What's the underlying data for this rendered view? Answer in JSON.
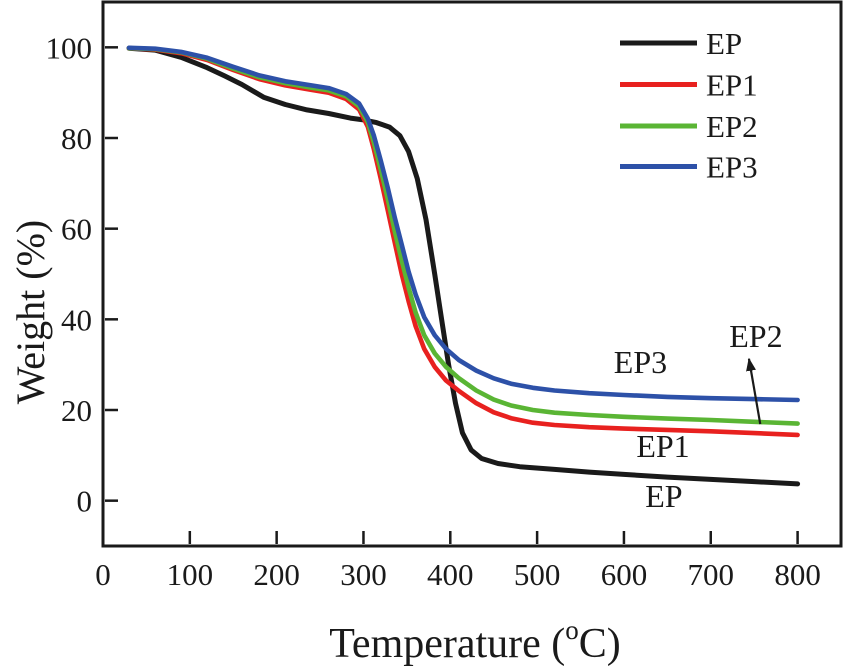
{
  "figure": {
    "background": "#ffffff",
    "frame_color": "#1a1a1a"
  },
  "chart_data": {
    "type": "line",
    "title": "",
    "xlabel": {
      "pre": "Temperature (",
      "sup": "o",
      "post": "C)"
    },
    "ylabel": "Weight (%)",
    "x_ticks": [
      0,
      100,
      200,
      300,
      400,
      500,
      600,
      700,
      800
    ],
    "y_ticks": [
      0,
      20,
      40,
      60,
      80,
      100
    ],
    "xlim": [
      0,
      850
    ],
    "ylim": [
      -10,
      110
    ],
    "grid": false,
    "legend_position": "top-right",
    "series": [
      {
        "name": "EP",
        "color": "#1a1a1a",
        "points": [
          [
            30,
            99.8
          ],
          [
            60,
            99.4
          ],
          [
            90,
            97.8
          ],
          [
            120,
            95.5
          ],
          [
            140,
            93.7
          ],
          [
            160,
            91.8
          ],
          [
            185,
            89.0
          ],
          [
            210,
            87.4
          ],
          [
            235,
            86.2
          ],
          [
            260,
            85.4
          ],
          [
            285,
            84.4
          ],
          [
            300,
            84.0
          ],
          [
            315,
            83.4
          ],
          [
            330,
            82.4
          ],
          [
            342,
            80.5
          ],
          [
            352,
            77.0
          ],
          [
            362,
            71.0
          ],
          [
            372,
            62.0
          ],
          [
            382,
            50.0
          ],
          [
            390,
            40.0
          ],
          [
            398,
            30.0
          ],
          [
            406,
            21.5
          ],
          [
            414,
            15.0
          ],
          [
            424,
            11.2
          ],
          [
            436,
            9.3
          ],
          [
            455,
            8.2
          ],
          [
            480,
            7.5
          ],
          [
            520,
            6.9
          ],
          [
            560,
            6.3
          ],
          [
            600,
            5.8
          ],
          [
            650,
            5.2
          ],
          [
            700,
            4.7
          ],
          [
            750,
            4.2
          ],
          [
            800,
            3.7
          ]
        ]
      },
      {
        "name": "EP1",
        "color": "#e8211f",
        "points": [
          [
            30,
            99.8
          ],
          [
            60,
            99.5
          ],
          [
            90,
            98.7
          ],
          [
            120,
            97.2
          ],
          [
            150,
            95.0
          ],
          [
            180,
            93.0
          ],
          [
            210,
            91.6
          ],
          [
            240,
            90.6
          ],
          [
            260,
            90.0
          ],
          [
            280,
            88.6
          ],
          [
            295,
            86.3
          ],
          [
            305,
            82.5
          ],
          [
            312,
            77.5
          ],
          [
            320,
            71.0
          ],
          [
            328,
            64.0
          ],
          [
            336,
            57.0
          ],
          [
            344,
            50.0
          ],
          [
            352,
            44.0
          ],
          [
            360,
            38.5
          ],
          [
            370,
            33.5
          ],
          [
            382,
            29.5
          ],
          [
            395,
            26.5
          ],
          [
            410,
            24.2
          ],
          [
            430,
            21.5
          ],
          [
            450,
            19.5
          ],
          [
            470,
            18.2
          ],
          [
            495,
            17.2
          ],
          [
            520,
            16.7
          ],
          [
            560,
            16.2
          ],
          [
            600,
            15.9
          ],
          [
            650,
            15.6
          ],
          [
            700,
            15.3
          ],
          [
            750,
            14.9
          ],
          [
            800,
            14.5
          ]
        ]
      },
      {
        "name": "EP2",
        "color": "#5ab534",
        "points": [
          [
            30,
            99.8
          ],
          [
            60,
            99.6
          ],
          [
            90,
            98.9
          ],
          [
            120,
            97.5
          ],
          [
            150,
            95.3
          ],
          [
            180,
            93.4
          ],
          [
            210,
            92.1
          ],
          [
            240,
            91.1
          ],
          [
            260,
            90.5
          ],
          [
            280,
            89.2
          ],
          [
            295,
            87.0
          ],
          [
            305,
            83.5
          ],
          [
            312,
            79.0
          ],
          [
            320,
            73.0
          ],
          [
            328,
            66.5
          ],
          [
            336,
            59.5
          ],
          [
            344,
            53.0
          ],
          [
            352,
            47.0
          ],
          [
            360,
            41.5
          ],
          [
            370,
            36.5
          ],
          [
            382,
            32.5
          ],
          [
            395,
            29.5
          ],
          [
            410,
            27.0
          ],
          [
            430,
            24.3
          ],
          [
            450,
            22.3
          ],
          [
            470,
            21.0
          ],
          [
            495,
            20.0
          ],
          [
            520,
            19.4
          ],
          [
            560,
            18.9
          ],
          [
            600,
            18.5
          ],
          [
            650,
            18.1
          ],
          [
            700,
            17.8
          ],
          [
            750,
            17.4
          ],
          [
            800,
            17.0
          ]
        ]
      },
      {
        "name": "EP3",
        "color": "#2d51a8",
        "points": [
          [
            30,
            99.9
          ],
          [
            60,
            99.7
          ],
          [
            90,
            99.0
          ],
          [
            120,
            97.7
          ],
          [
            150,
            95.7
          ],
          [
            180,
            93.8
          ],
          [
            210,
            92.5
          ],
          [
            240,
            91.6
          ],
          [
            260,
            91.0
          ],
          [
            280,
            89.7
          ],
          [
            295,
            87.6
          ],
          [
            305,
            84.3
          ],
          [
            312,
            80.5
          ],
          [
            320,
            75.0
          ],
          [
            328,
            69.0
          ],
          [
            336,
            62.5
          ],
          [
            344,
            56.5
          ],
          [
            352,
            50.5
          ],
          [
            360,
            45.5
          ],
          [
            370,
            40.5
          ],
          [
            382,
            36.5
          ],
          [
            395,
            33.5
          ],
          [
            410,
            31.0
          ],
          [
            430,
            28.7
          ],
          [
            450,
            27.0
          ],
          [
            470,
            25.8
          ],
          [
            495,
            24.9
          ],
          [
            520,
            24.3
          ],
          [
            560,
            23.7
          ],
          [
            600,
            23.3
          ],
          [
            650,
            22.9
          ],
          [
            700,
            22.6
          ],
          [
            750,
            22.4
          ],
          [
            800,
            22.2
          ]
        ]
      }
    ],
    "legend": {
      "entries": [
        "EP",
        "EP1",
        "EP2",
        "EP3"
      ]
    },
    "annotations": [
      {
        "text": "EP3",
        "x": 619,
        "y": 30.6
      },
      {
        "text": "EP2",
        "x": 752,
        "y": 36.3
      },
      {
        "text": "EP1",
        "x": 645,
        "y": 12.1
      },
      {
        "text": "EP",
        "x": 646,
        "y": 1.0
      }
    ],
    "annotation_arrow": {
      "x1": 757,
      "y1": 16.9,
      "x2": 744,
      "y2": 31.3
    }
  }
}
